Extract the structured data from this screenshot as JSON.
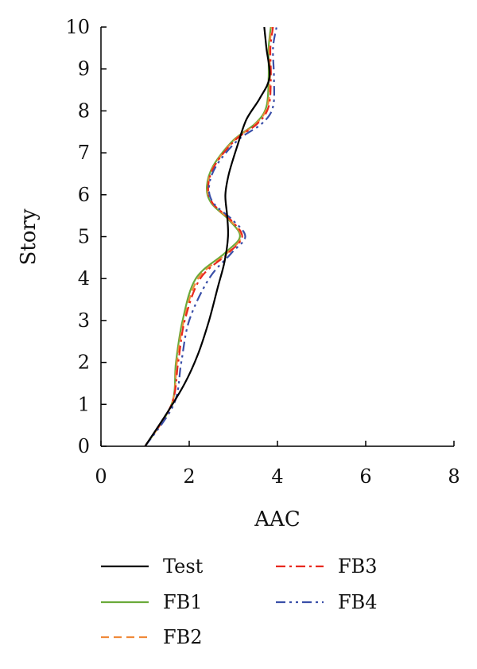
{
  "chart_data": {
    "type": "line",
    "title": "",
    "xlabel": "AAC",
    "ylabel": "Story",
    "xlim": [
      0,
      8
    ],
    "ylim": [
      0,
      10
    ],
    "xticks": [
      "0",
      "2",
      "4",
      "6",
      "8"
    ],
    "yticks": [
      "0",
      "1",
      "2",
      "3",
      "4",
      "5",
      "6",
      "7",
      "8",
      "9",
      "10"
    ],
    "legend_position": "bottom",
    "series": [
      {
        "name": "Test",
        "color": "#000000",
        "dash": "solid",
        "points": [
          [
            1.0,
            0
          ],
          [
            1.5,
            0.8
          ],
          [
            1.9,
            1.5
          ],
          [
            2.2,
            2.2
          ],
          [
            2.45,
            3.0
          ],
          [
            2.65,
            3.8
          ],
          [
            2.8,
            4.4
          ],
          [
            2.88,
            5.0
          ],
          [
            2.86,
            5.5
          ],
          [
            2.82,
            6.0
          ],
          [
            2.9,
            6.5
          ],
          [
            3.1,
            7.2
          ],
          [
            3.3,
            7.8
          ],
          [
            3.6,
            8.3
          ],
          [
            3.82,
            8.8
          ],
          [
            3.75,
            9.5
          ],
          [
            3.7,
            10
          ]
        ]
      },
      {
        "name": "FB1",
        "color": "#6aaa3a",
        "dash": "solid",
        "points": [
          [
            1.0,
            0
          ],
          [
            1.6,
            1.0
          ],
          [
            1.7,
            2.0
          ],
          [
            1.85,
            3.0
          ],
          [
            2.15,
            4.0
          ],
          [
            2.8,
            4.6
          ],
          [
            3.15,
            5.0
          ],
          [
            2.9,
            5.4
          ],
          [
            2.5,
            5.8
          ],
          [
            2.4,
            6.2
          ],
          [
            2.55,
            6.7
          ],
          [
            3.0,
            7.3
          ],
          [
            3.5,
            7.7
          ],
          [
            3.75,
            8.1
          ],
          [
            3.8,
            8.8
          ],
          [
            3.8,
            9.5
          ],
          [
            3.85,
            10
          ]
        ]
      },
      {
        "name": "FB2",
        "color": "#f08a3a",
        "dash": "10,6",
        "points": [
          [
            1.0,
            0
          ],
          [
            1.6,
            1.0
          ],
          [
            1.72,
            2.0
          ],
          [
            1.88,
            3.0
          ],
          [
            2.2,
            4.0
          ],
          [
            2.85,
            4.6
          ],
          [
            3.18,
            5.0
          ],
          [
            2.92,
            5.4
          ],
          [
            2.52,
            5.8
          ],
          [
            2.42,
            6.2
          ],
          [
            2.57,
            6.7
          ],
          [
            3.02,
            7.3
          ],
          [
            3.52,
            7.7
          ],
          [
            3.77,
            8.1
          ],
          [
            3.83,
            8.8
          ],
          [
            3.82,
            9.5
          ],
          [
            3.87,
            10
          ]
        ]
      },
      {
        "name": "FB3",
        "color": "#e8281e",
        "dash": "12,5,3,5",
        "points": [
          [
            1.0,
            0
          ],
          [
            1.6,
            1.0
          ],
          [
            1.75,
            2.0
          ],
          [
            1.9,
            3.0
          ],
          [
            2.25,
            4.0
          ],
          [
            2.88,
            4.6
          ],
          [
            3.2,
            5.0
          ],
          [
            2.94,
            5.4
          ],
          [
            2.53,
            5.8
          ],
          [
            2.43,
            6.2
          ],
          [
            2.58,
            6.7
          ],
          [
            3.04,
            7.3
          ],
          [
            3.55,
            7.7
          ],
          [
            3.8,
            8.1
          ],
          [
            3.85,
            8.8
          ],
          [
            3.84,
            9.5
          ],
          [
            3.9,
            10
          ]
        ]
      },
      {
        "name": "FB4",
        "color": "#3a4fa8",
        "dash": "12,5,3,5,3,5",
        "points": [
          [
            1.0,
            0
          ],
          [
            1.65,
            1.0
          ],
          [
            1.82,
            2.0
          ],
          [
            2.0,
            3.0
          ],
          [
            2.45,
            4.0
          ],
          [
            2.95,
            4.6
          ],
          [
            3.27,
            5.0
          ],
          [
            2.98,
            5.4
          ],
          [
            2.55,
            5.8
          ],
          [
            2.45,
            6.2
          ],
          [
            2.62,
            6.7
          ],
          [
            3.1,
            7.3
          ],
          [
            3.65,
            7.7
          ],
          [
            3.9,
            8.1
          ],
          [
            3.92,
            8.8
          ],
          [
            3.9,
            9.5
          ],
          [
            3.98,
            10
          ]
        ]
      }
    ]
  }
}
